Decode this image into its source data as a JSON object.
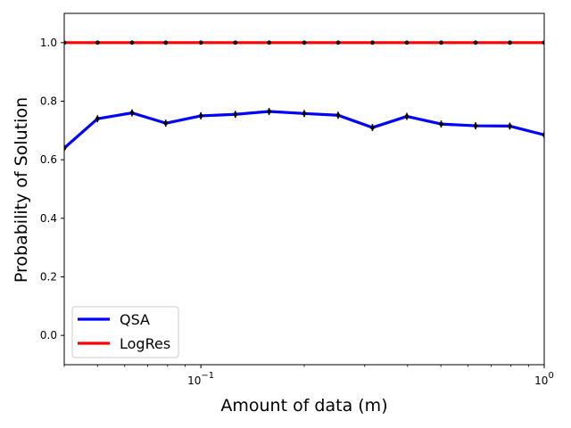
{
  "chart_data": {
    "type": "line",
    "title": "",
    "xlabel": "Amount of data (m)",
    "ylabel": "Probability of Solution",
    "xscale": "log",
    "xlim": [
      0.04,
      1.0
    ],
    "ylim": [
      -0.1,
      1.1
    ],
    "grid": false,
    "legend_position": "lower-left",
    "x_ticks": [
      {
        "value": 0.1,
        "base": "10",
        "exp": "−1"
      },
      {
        "value": 1.0,
        "base": "10",
        "exp": "0"
      }
    ],
    "y_ticks": [
      "0.0",
      "0.2",
      "0.4",
      "0.6",
      "0.8",
      "1.0"
    ],
    "x": [
      0.04,
      0.05,
      0.063,
      0.079,
      0.1,
      0.126,
      0.158,
      0.2,
      0.251,
      0.316,
      0.398,
      0.501,
      0.631,
      0.794,
      1.0
    ],
    "series": [
      {
        "name": "QSA",
        "color": "#0000ff",
        "values": [
          0.64,
          0.74,
          0.76,
          0.725,
          0.75,
          0.755,
          0.765,
          0.758,
          0.752,
          0.71,
          0.748,
          0.722,
          0.716,
          0.715,
          0.685
        ],
        "errors": [
          0.01,
          0.012,
          0.012,
          0.012,
          0.012,
          0.012,
          0.012,
          0.012,
          0.012,
          0.012,
          0.012,
          0.012,
          0.012,
          0.012,
          0.012
        ]
      },
      {
        "name": "LogRes",
        "color": "#ff0000",
        "values": [
          1.0,
          1.0,
          1.0,
          1.0,
          1.0,
          1.0,
          1.0,
          1.0,
          1.0,
          1.0,
          1.0,
          1.0,
          1.0,
          1.0,
          1.0
        ],
        "errors": [
          0,
          0,
          0,
          0,
          0,
          0,
          0,
          0,
          0,
          0,
          0,
          0,
          0,
          0,
          0
        ]
      }
    ]
  }
}
